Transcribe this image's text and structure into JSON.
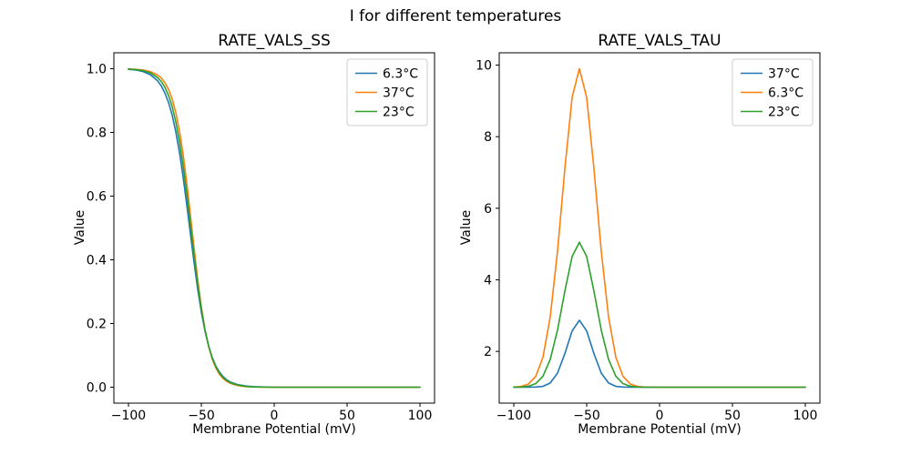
{
  "figure": {
    "suptitle": "I for different temperatures",
    "background": "#ffffff"
  },
  "colors": {
    "blue": "#1f77b4",
    "orange": "#ff7f0e",
    "green": "#2ca02c",
    "legend_edge": "#cccccc",
    "spine": "#000000"
  },
  "chart_data": [
    {
      "type": "line",
      "title": "RATE_VALS_SS",
      "xlabel": "Membrane Potential (mV)",
      "ylabel": "Value",
      "xlim": [
        -110,
        110
      ],
      "ylim": [
        -0.05,
        1.05
      ],
      "grid": false,
      "legend_position": "upper-right",
      "xticks": {
        "values": [
          -100,
          -50,
          0,
          50,
          100
        ],
        "labels": [
          "−100",
          "−50",
          "0",
          "50",
          "100"
        ]
      },
      "yticks": {
        "values": [
          0.0,
          0.2,
          0.4,
          0.6,
          0.8,
          1.0
        ],
        "labels": [
          "0.0",
          "0.2",
          "0.4",
          "0.6",
          "0.8",
          "1.0"
        ]
      },
      "x": [
        -100,
        -95,
        -90,
        -85,
        -80,
        -77.5,
        -75,
        -72.5,
        -70,
        -67.5,
        -65,
        -62.5,
        -60,
        -57.5,
        -55,
        -52.5,
        -50,
        -47.5,
        -45,
        -42.5,
        -40,
        -37.5,
        -35,
        -32.5,
        -30,
        -25,
        -20,
        -15,
        -10,
        0,
        10,
        20,
        30,
        40,
        50,
        60,
        70,
        80,
        90,
        100
      ],
      "series": [
        {
          "name": "6.3°C",
          "color": "#1f77b4",
          "values": [
            0.998,
            0.996,
            0.991,
            0.981,
            0.962,
            0.946,
            0.924,
            0.894,
            0.854,
            0.802,
            0.737,
            0.66,
            0.573,
            0.482,
            0.392,
            0.308,
            0.236,
            0.176,
            0.129,
            0.093,
            0.066,
            0.047,
            0.033,
            0.023,
            0.016,
            0.008,
            0.004,
            0.002,
            0.001,
            0,
            0,
            0,
            0,
            0,
            0,
            0,
            0,
            0,
            0,
            0
          ]
        },
        {
          "name": "37°C",
          "color": "#ff7f0e",
          "values": [
            0.999,
            0.998,
            0.996,
            0.991,
            0.98,
            0.971,
            0.956,
            0.935,
            0.905,
            0.862,
            0.805,
            0.731,
            0.642,
            0.542,
            0.438,
            0.339,
            0.253,
            0.182,
            0.128,
            0.088,
            0.06,
            0.04,
            0.027,
            0.018,
            0.012,
            0.005,
            0.002,
            0.001,
            0,
            0,
            0,
            0,
            0,
            0,
            0,
            0,
            0,
            0,
            0,
            0
          ]
        },
        {
          "name": "23°C",
          "color": "#2ca02c",
          "values": [
            0.999,
            0.997,
            0.994,
            0.987,
            0.972,
            0.96,
            0.942,
            0.916,
            0.881,
            0.833,
            0.772,
            0.696,
            0.608,
            0.512,
            0.415,
            0.324,
            0.245,
            0.18,
            0.129,
            0.091,
            0.064,
            0.044,
            0.03,
            0.021,
            0.014,
            0.007,
            0.003,
            0.001,
            0.001,
            0,
            0,
            0,
            0,
            0,
            0,
            0,
            0,
            0,
            0,
            0
          ]
        }
      ]
    },
    {
      "type": "line",
      "title": "RATE_VALS_TAU",
      "xlabel": "Membrane Potential (mV)",
      "ylabel": "Value",
      "xlim": [
        -110,
        110
      ],
      "ylim": [
        0.555,
        10.345
      ],
      "grid": false,
      "legend_position": "upper-right",
      "xticks": {
        "values": [
          -100,
          -50,
          0,
          50,
          100
        ],
        "labels": [
          "−100",
          "−50",
          "0",
          "50",
          "100"
        ]
      },
      "yticks": {
        "values": [
          2,
          4,
          6,
          8,
          10
        ],
        "labels": [
          "2",
          "4",
          "6",
          "8",
          "10"
        ]
      },
      "x": [
        -100,
        -95,
        -90,
        -85,
        -80,
        -75,
        -70,
        -65,
        -60,
        -55,
        -50,
        -45,
        -40,
        -35,
        -30,
        -25,
        -20,
        -15,
        -10,
        -5,
        0,
        10,
        20,
        30,
        40,
        50,
        60,
        70,
        80,
        90,
        100
      ],
      "series": [
        {
          "name": "37°C",
          "color": "#1f77b4",
          "values": [
            1.0,
            1.0,
            1.001,
            1.004,
            1.025,
            1.117,
            1.394,
            1.936,
            2.573,
            2.87,
            2.573,
            1.936,
            1.394,
            1.117,
            1.025,
            1.004,
            1.001,
            1.0,
            1.0,
            1.0,
            1.0,
            1.0,
            1.0,
            1.0,
            1.0,
            1.0,
            1.0,
            1.0,
            1.0,
            1.0,
            1.0
          ]
        },
        {
          "name": "6.3°C",
          "color": "#ff7f0e",
          "values": [
            1.004,
            1.021,
            1.087,
            1.296,
            1.836,
            2.962,
            4.801,
            7.098,
            9.097,
            9.9,
            9.097,
            7.098,
            4.801,
            2.962,
            1.836,
            1.296,
            1.087,
            1.021,
            1.004,
            1.001,
            1.0,
            1.0,
            1.0,
            1.0,
            1.0,
            1.0,
            1.0,
            1.0,
            1.0,
            1.0,
            1.0
          ]
        },
        {
          "name": "23°C",
          "color": "#2ca02c",
          "values": [
            1.001,
            1.005,
            1.026,
            1.098,
            1.306,
            1.776,
            2.598,
            3.679,
            4.652,
            5.05,
            4.652,
            3.679,
            2.598,
            1.776,
            1.306,
            1.098,
            1.026,
            1.005,
            1.001,
            1.0,
            1.0,
            1.0,
            1.0,
            1.0,
            1.0,
            1.0,
            1.0,
            1.0,
            1.0,
            1.0,
            1.0
          ]
        }
      ]
    }
  ]
}
